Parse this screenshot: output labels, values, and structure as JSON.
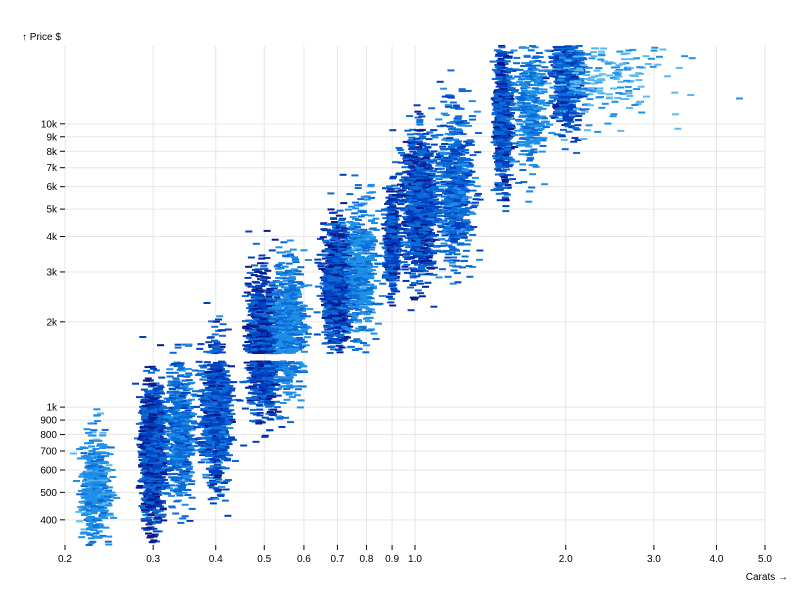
{
  "chart_data": {
    "type": "heatmap",
    "title": "",
    "xlabel": "Carats →",
    "ylabel": "↑ Price $",
    "x_scale": "log",
    "y_scale": "log",
    "xlim": [
      0.2,
      5.0
    ],
    "ylim": [
      326,
      18823
    ],
    "grid": true,
    "color_scheme": "blues",
    "colors": [
      "#0a1a8c",
      "#0040c0",
      "#0a6ad6",
      "#1e90e8",
      "#5cb8f2"
    ],
    "x_ticks": [
      {
        "value": 0.2,
        "label": "0.2"
      },
      {
        "value": 0.3,
        "label": "0.3"
      },
      {
        "value": 0.4,
        "label": "0.4"
      },
      {
        "value": 0.5,
        "label": "0.5"
      },
      {
        "value": 0.6,
        "label": "0.6"
      },
      {
        "value": 0.7,
        "label": "0.7"
      },
      {
        "value": 0.8,
        "label": "0.8"
      },
      {
        "value": 0.9,
        "label": "0.9"
      },
      {
        "value": 1.0,
        "label": "1.0"
      },
      {
        "value": 2.0,
        "label": "2.0"
      },
      {
        "value": 3.0,
        "label": "3.0"
      },
      {
        "value": 4.0,
        "label": "4.0"
      },
      {
        "value": 5.0,
        "label": "5.0"
      }
    ],
    "y_ticks": [
      {
        "value": 400,
        "label": "400"
      },
      {
        "value": 500,
        "label": "500"
      },
      {
        "value": 600,
        "label": "600"
      },
      {
        "value": 700,
        "label": "700"
      },
      {
        "value": 800,
        "label": "800"
      },
      {
        "value": 900,
        "label": "900"
      },
      {
        "value": 1000,
        "label": "1k"
      },
      {
        "value": 2000,
        "label": "2k"
      },
      {
        "value": 3000,
        "label": "3k"
      },
      {
        "value": 4000,
        "label": "4k"
      },
      {
        "value": 5000,
        "label": "5k"
      },
      {
        "value": 6000,
        "label": "6k"
      },
      {
        "value": 7000,
        "label": "7k"
      },
      {
        "value": 8000,
        "label": "8k"
      },
      {
        "value": 9000,
        "label": "9k"
      },
      {
        "value": 10000,
        "label": "10k"
      }
    ],
    "price_gap": [
      1450,
      1550
    ],
    "clusters": [
      {
        "carat": 0.23,
        "carat_spread": 0.025,
        "price": 520,
        "price_spread": 0.17,
        "count": 500,
        "density": 0.5
      },
      {
        "carat": 0.3,
        "carat_spread": 0.02,
        "price": 700,
        "price_spread": 0.2,
        "count": 1400,
        "density": 0.95
      },
      {
        "carat": 0.34,
        "carat_spread": 0.025,
        "price": 820,
        "price_spread": 0.2,
        "count": 600,
        "density": 0.7
      },
      {
        "carat": 0.4,
        "carat_spread": 0.025,
        "price": 950,
        "price_spread": 0.22,
        "count": 900,
        "density": 0.85
      },
      {
        "carat": 0.5,
        "carat_spread": 0.03,
        "price": 1650,
        "price_spread": 0.2,
        "count": 1300,
        "density": 0.95
      },
      {
        "carat": 0.56,
        "carat_spread": 0.03,
        "price": 1900,
        "price_spread": 0.2,
        "count": 600,
        "density": 0.6
      },
      {
        "carat": 0.7,
        "carat_spread": 0.025,
        "price": 2700,
        "price_spread": 0.18,
        "count": 1100,
        "density": 0.95
      },
      {
        "carat": 0.78,
        "carat_spread": 0.03,
        "price": 3000,
        "price_spread": 0.2,
        "count": 500,
        "density": 0.55
      },
      {
        "carat": 0.9,
        "carat_spread": 0.012,
        "price": 3900,
        "price_spread": 0.14,
        "count": 500,
        "density": 0.9
      },
      {
        "carat": 1.02,
        "carat_spread": 0.03,
        "price": 5200,
        "price_spread": 0.22,
        "count": 1100,
        "density": 0.9
      },
      {
        "carat": 1.2,
        "carat_spread": 0.035,
        "price": 6000,
        "price_spread": 0.22,
        "count": 700,
        "density": 0.75
      },
      {
        "carat": 1.5,
        "carat_spread": 0.015,
        "price": 10500,
        "price_spread": 0.22,
        "count": 700,
        "density": 0.9
      },
      {
        "carat": 1.7,
        "carat_spread": 0.03,
        "price": 11500,
        "price_spread": 0.2,
        "count": 350,
        "density": 0.6
      },
      {
        "carat": 2.02,
        "carat_spread": 0.03,
        "price": 15000,
        "price_spread": 0.16,
        "count": 700,
        "density": 0.85
      },
      {
        "carat": 2.4,
        "carat_spread": 0.12,
        "price": 14500,
        "price_spread": 0.14,
        "count": 200,
        "density": 0.35
      }
    ]
  }
}
